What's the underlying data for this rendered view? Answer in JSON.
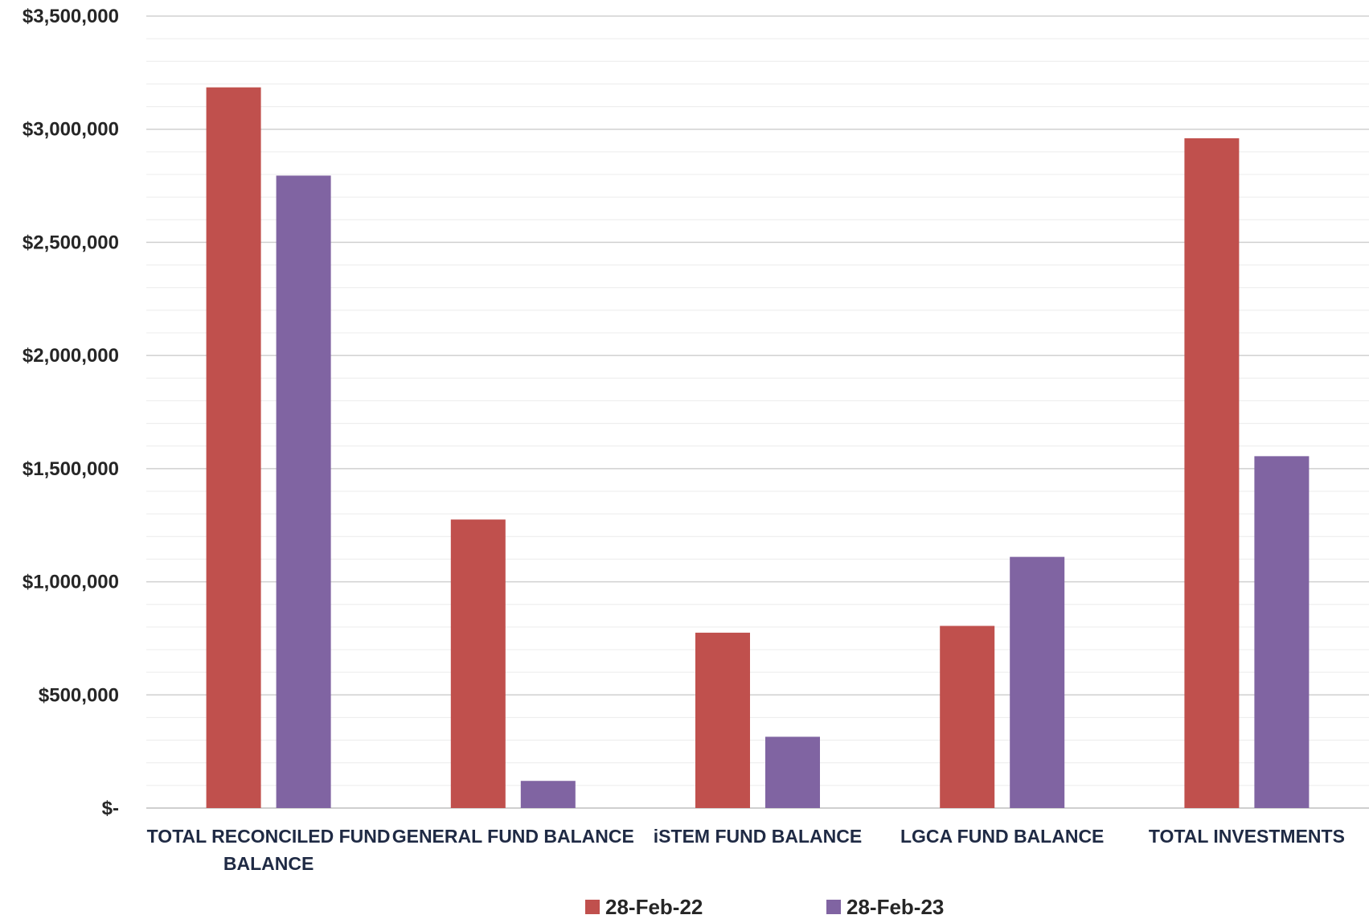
{
  "chart_data": {
    "type": "bar",
    "categories": [
      [
        "TOTAL RECONCILED FUND",
        "BALANCE"
      ],
      [
        "GENERAL FUND BALANCE"
      ],
      [
        "iSTEM FUND BALANCE"
      ],
      [
        "LGCA FUND BALANCE"
      ],
      [
        "TOTAL INVESTMENTS"
      ]
    ],
    "series": [
      {
        "name": "28-Feb-22",
        "color": "#c0504d",
        "values": [
          3185000,
          1275000,
          775000,
          805000,
          2960000
        ]
      },
      {
        "name": "28-Feb-23",
        "color": "#8064a2",
        "values": [
          2795000,
          120000,
          315000,
          1110000,
          1555000
        ]
      }
    ],
    "ylim": [
      0,
      3500000
    ],
    "y_ticks": [
      {
        "value": 0,
        "label": "$-"
      },
      {
        "value": 500000,
        "label": "$500,000"
      },
      {
        "value": 1000000,
        "label": "$1,000,000"
      },
      {
        "value": 1500000,
        "label": "$1,500,000"
      },
      {
        "value": 2000000,
        "label": "$2,000,000"
      },
      {
        "value": 2500000,
        "label": "$2,500,000"
      },
      {
        "value": 3000000,
        "label": "$3,000,000"
      },
      {
        "value": 3500000,
        "label": "$3,500,000"
      }
    ],
    "minor_grid_step": 100000,
    "grid": true,
    "legend_position": "bottom",
    "title": "",
    "xlabel": "",
    "ylabel": ""
  }
}
